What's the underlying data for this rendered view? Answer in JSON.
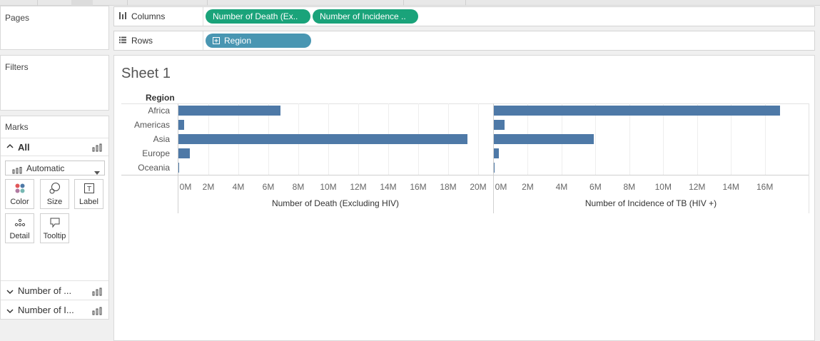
{
  "left_panel": {
    "pages_title": "Pages",
    "filters_title": "Filters",
    "marks_title": "Marks",
    "all_label": "All",
    "mark_type": "Automatic",
    "mark_buttons": {
      "color": "Color",
      "size": "Size",
      "label": "Label",
      "detail": "Detail",
      "tooltip": "Tooltip"
    },
    "measures": [
      "Number of ...",
      "Number of I..."
    ]
  },
  "shelves": {
    "columns_label": "Columns",
    "rows_label": "Rows",
    "column_pills": [
      "Number of Death (Ex..",
      "Number of Incidence .."
    ],
    "row_pills": [
      "Region"
    ]
  },
  "sheet": {
    "title": "Sheet 1",
    "row_header": "Region"
  },
  "colors": {
    "bar": "#4e79a7",
    "green_pill": "#1aa37a",
    "blue_pill": "#4996b2"
  },
  "chart_data": [
    {
      "type": "bar",
      "orientation": "horizontal",
      "categories": [
        "Africa",
        "Americas",
        "Asia",
        "Europe",
        "Oceania"
      ],
      "values": [
        6800000,
        400000,
        19300000,
        780000,
        40000
      ],
      "xlabel": "Number of Death (Excluding HIV)",
      "ylabel": "Region",
      "xlim": [
        0,
        20000000
      ],
      "ticks": [
        "0M",
        "2M",
        "4M",
        "6M",
        "8M",
        "10M",
        "12M",
        "14M",
        "16M",
        "18M",
        "20M"
      ]
    },
    {
      "type": "bar",
      "orientation": "horizontal",
      "categories": [
        "Africa",
        "Americas",
        "Asia",
        "Europe",
        "Oceania"
      ],
      "values": [
        16900000,
        650000,
        5900000,
        280000,
        40000
      ],
      "xlabel": "Number of Incidence of TB (HIV +)",
      "ylabel": "Region",
      "xlim": [
        0,
        17700000
      ],
      "ticks": [
        "0M",
        "2M",
        "4M",
        "6M",
        "8M",
        "10M",
        "12M",
        "14M",
        "16M"
      ]
    }
  ]
}
